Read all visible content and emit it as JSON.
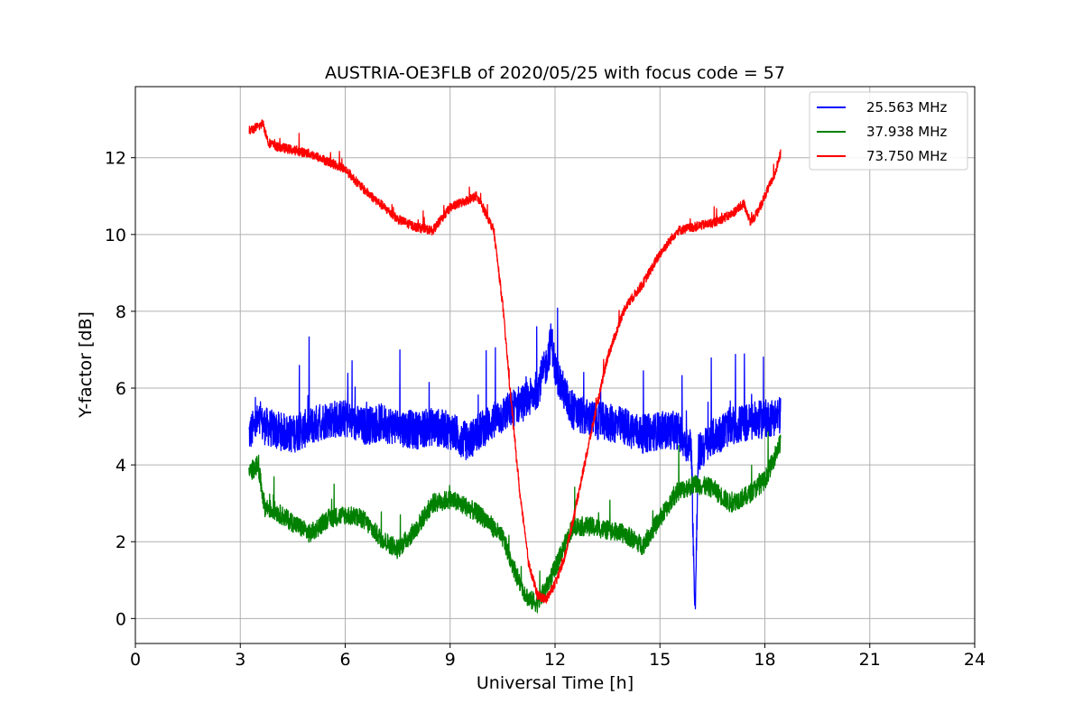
{
  "chart_data": {
    "type": "line",
    "title": "AUSTRIA-OE3FLB of 2020/05/25 with focus code = 57",
    "xlabel": "Universal Time [h]",
    "ylabel": "Y-factor [dB]",
    "xlim": [
      0,
      24
    ],
    "ylim": [
      -0.65,
      13.85
    ],
    "xticks": [
      0,
      3,
      6,
      9,
      12,
      15,
      18,
      21,
      24
    ],
    "yticks": [
      0,
      2,
      4,
      6,
      8,
      10,
      12
    ],
    "grid": true,
    "legend_position": "top-right",
    "series": [
      {
        "name": "25.563 MHz",
        "color": "#0000ff",
        "x": [
          3.25,
          3.5,
          4.0,
          4.5,
          5.0,
          5.5,
          6.0,
          6.5,
          7.0,
          7.5,
          8.0,
          8.5,
          9.0,
          9.5,
          10.0,
          10.5,
          11.0,
          11.25,
          11.5,
          11.75,
          11.9,
          12.0,
          12.25,
          12.5,
          13.0,
          13.5,
          14.0,
          14.5,
          15.0,
          15.5,
          15.9,
          16.0,
          16.1,
          16.5,
          17.0,
          17.5,
          18.0,
          18.45
        ],
        "y": [
          4.8,
          5.1,
          4.9,
          4.8,
          5.0,
          5.2,
          5.2,
          5.0,
          5.1,
          5.0,
          4.9,
          5.0,
          4.9,
          4.6,
          5.0,
          5.3,
          5.6,
          5.7,
          6.0,
          6.6,
          7.3,
          6.5,
          5.9,
          5.4,
          5.2,
          5.1,
          5.0,
          4.8,
          4.9,
          4.9,
          4.4,
          0.0,
          4.3,
          4.7,
          5.0,
          5.1,
          5.2,
          5.3
        ],
        "noise": 0.5
      },
      {
        "name": "37.938 MHz",
        "color": "#008000",
        "x": [
          3.25,
          3.5,
          3.7,
          4.0,
          4.5,
          5.0,
          5.5,
          6.0,
          6.5,
          7.0,
          7.5,
          8.0,
          8.5,
          9.0,
          9.5,
          10.0,
          10.5,
          11.0,
          11.25,
          11.5,
          11.75,
          12.0,
          12.5,
          13.0,
          13.5,
          14.0,
          14.5,
          15.0,
          15.5,
          16.0,
          16.5,
          17.0,
          17.5,
          18.0,
          18.45
        ],
        "y": [
          3.8,
          4.0,
          2.9,
          2.8,
          2.5,
          2.2,
          2.6,
          2.7,
          2.6,
          2.1,
          1.8,
          2.3,
          3.0,
          3.1,
          2.9,
          2.6,
          2.1,
          0.9,
          0.5,
          0.4,
          0.8,
          1.3,
          2.4,
          2.4,
          2.3,
          2.2,
          1.9,
          2.6,
          3.3,
          3.5,
          3.4,
          3.0,
          3.2,
          3.6,
          4.6
        ],
        "noise": 0.25
      },
      {
        "name": "73.750 MHz",
        "color": "#ff0000",
        "x": [
          3.25,
          3.5,
          3.65,
          3.8,
          4.0,
          4.5,
          5.0,
          5.5,
          6.0,
          6.5,
          7.0,
          7.5,
          8.0,
          8.5,
          9.0,
          9.5,
          9.75,
          10.0,
          10.25,
          10.5,
          10.75,
          11.0,
          11.25,
          11.5,
          11.75,
          12.0,
          12.25,
          12.5,
          12.75,
          13.0,
          13.5,
          14.0,
          14.5,
          15.0,
          15.5,
          16.0,
          16.5,
          17.0,
          17.4,
          17.6,
          17.8,
          18.0,
          18.25,
          18.45
        ],
        "y": [
          12.7,
          12.8,
          12.9,
          12.4,
          12.3,
          12.2,
          12.1,
          11.9,
          11.7,
          11.2,
          10.8,
          10.4,
          10.2,
          10.1,
          10.7,
          10.9,
          11.0,
          10.6,
          10.1,
          8.2,
          5.6,
          3.2,
          1.4,
          0.6,
          0.5,
          0.9,
          1.5,
          2.5,
          3.6,
          4.7,
          6.8,
          8.1,
          8.7,
          9.5,
          10.1,
          10.2,
          10.3,
          10.5,
          10.8,
          10.3,
          10.6,
          11.0,
          11.5,
          12.1
        ],
        "noise": 0.12
      }
    ]
  }
}
